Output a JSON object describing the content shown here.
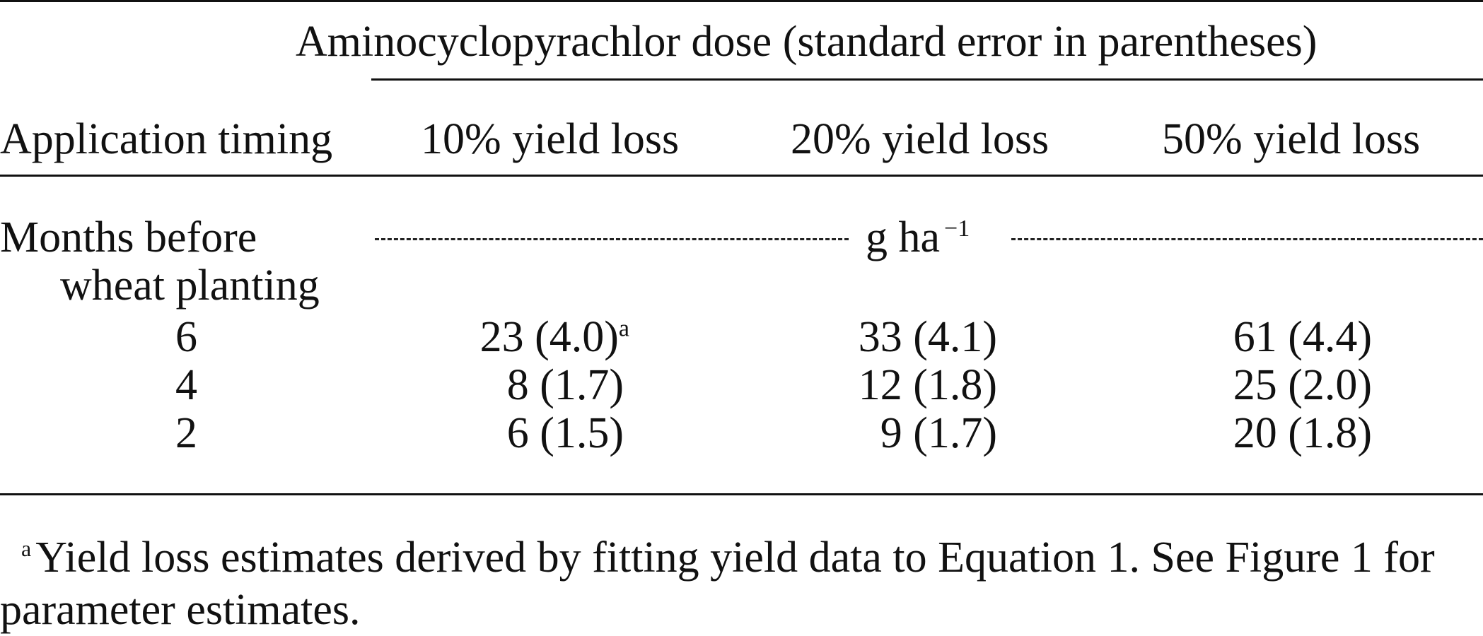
{
  "table": {
    "spanner_header": "Aminocyclopyrachlor dose (standard error in parentheses)",
    "col_headers": [
      "Application timing",
      "10% yield loss",
      "20% yield loss",
      "50% yield loss"
    ],
    "units_row": {
      "label_line1": "Months before",
      "label_line2": "wheat planting",
      "unit_text": "g ha",
      "unit_exponent": "−1"
    },
    "rows": [
      {
        "timing": "6",
        "c10": "23 (4.0)",
        "c10_note": "a",
        "c20": "33 (4.1)",
        "c50": "61 (4.4)"
      },
      {
        "timing": "4",
        "c10": "8 (1.7)",
        "c10_note": "",
        "c20": "12 (1.8)",
        "c50": "25 (2.0)"
      },
      {
        "timing": "2",
        "c10": "6 (1.5)",
        "c10_note": "",
        "c20": "9 (1.7)",
        "c50": "20 (1.8)"
      }
    ]
  },
  "footnote": {
    "marker": "a",
    "text": "Yield loss estimates derived by fitting yield data to Equation 1. See Figure 1 for parameter estimates."
  }
}
